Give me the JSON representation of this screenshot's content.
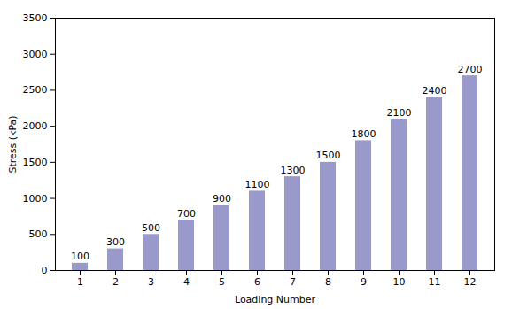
{
  "chart_data": {
    "type": "bar",
    "x": [
      1,
      2,
      3,
      4,
      5,
      6,
      7,
      8,
      9,
      10,
      11,
      12
    ],
    "values": [
      100,
      300,
      500,
      700,
      900,
      1100,
      1300,
      1500,
      1800,
      2100,
      2400,
      2700
    ],
    "color": "#9999cc",
    "xlabel": "Loading Number",
    "ylabel": "Stress (kPa)",
    "xlim": [
      0.3,
      12.7
    ],
    "xticks": [
      1,
      2,
      3,
      4,
      5,
      6,
      7,
      8,
      9,
      10,
      11,
      12
    ],
    "ylim": [
      0,
      3500
    ],
    "yticks": [
      0,
      500,
      1000,
      1500,
      2000,
      2500,
      3000,
      3500
    ],
    "data_labels": true,
    "grid": false
  }
}
